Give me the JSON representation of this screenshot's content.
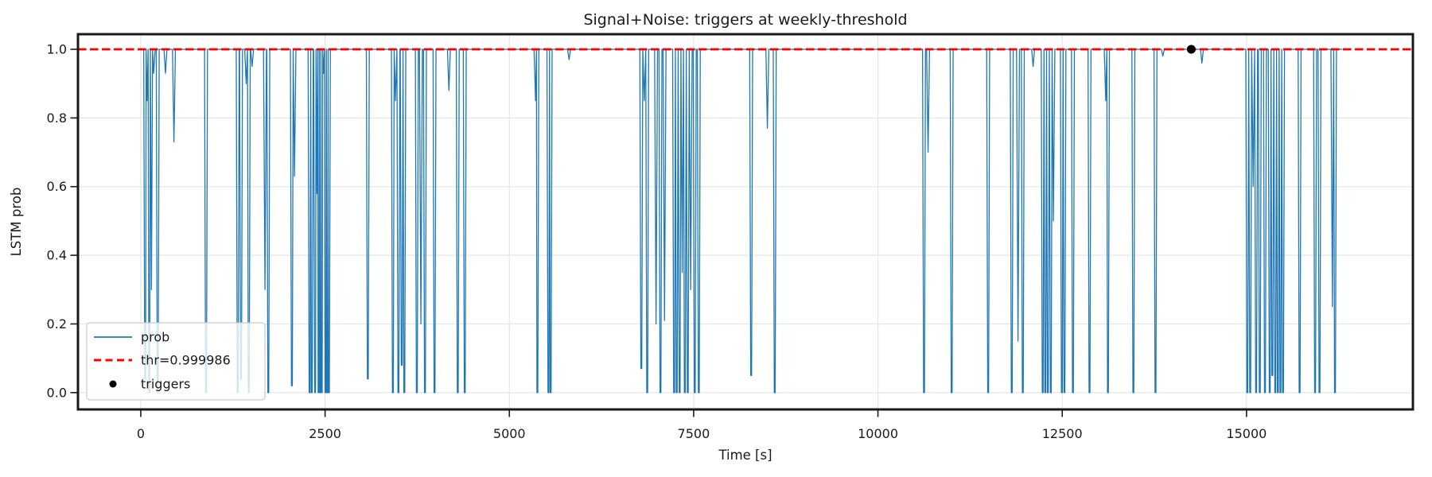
{
  "chart_data": {
    "type": "line",
    "title": "Signal+Noise: triggers at weekly-threshold",
    "xlabel": "Time [s]",
    "ylabel": "LSTM prob",
    "xlim": [
      -852,
      17257
    ],
    "ylim": [
      -0.049,
      1.044
    ],
    "x_ticks": [
      0,
      2500,
      5000,
      7500,
      10000,
      12500,
      15000
    ],
    "y_ticks": [
      0.0,
      0.2,
      0.4,
      0.6,
      0.8,
      1.0
    ],
    "grid": true,
    "threshold": 0.999986,
    "legend": {
      "position": "lower left",
      "entries": [
        {
          "label": "prob",
          "type": "line",
          "color": "#1f77b4"
        },
        {
          "label": "thr=0.999986",
          "type": "dashed",
          "color": "#ff0000"
        },
        {
          "label": "triggers",
          "type": "dot",
          "color": "#000000"
        }
      ]
    },
    "series": [
      {
        "name": "prob",
        "color": "#1f77b4",
        "baseline": 1.0,
        "t_start": 0,
        "t_end": 16300,
        "spikes": [
          [
            60,
            0.04
          ],
          [
            85,
            0.85
          ],
          [
            115,
            0.0
          ],
          [
            145,
            0.3
          ],
          [
            175,
            0.93
          ],
          [
            230,
            0.0
          ],
          [
            335,
            0.93
          ],
          [
            450,
            0.73
          ],
          [
            885,
            0.0
          ],
          [
            1315,
            0.0
          ],
          [
            1360,
            0.04
          ],
          [
            1430,
            0.9
          ],
          [
            1465,
            0.0
          ],
          [
            1510,
            0.95
          ],
          [
            1685,
            0.3
          ],
          [
            1730,
            0.0
          ],
          [
            2050,
            0.02
          ],
          [
            2085,
            0.63
          ],
          [
            2290,
            0.0
          ],
          [
            2320,
            0.0
          ],
          [
            2365,
            0.0
          ],
          [
            2390,
            0.58
          ],
          [
            2412,
            0.0
          ],
          [
            2432,
            0.0
          ],
          [
            2455,
            0.0
          ],
          [
            2480,
            0.93
          ],
          [
            2505,
            0.0
          ],
          [
            2530,
            0.0
          ],
          [
            2552,
            0.0
          ],
          [
            3080,
            0.04
          ],
          [
            3420,
            0.0
          ],
          [
            3455,
            0.85
          ],
          [
            3495,
            0.0
          ],
          [
            3540,
            0.08
          ],
          [
            3575,
            0.0
          ],
          [
            3745,
            0.0
          ],
          [
            3800,
            0.2
          ],
          [
            3855,
            0.0
          ],
          [
            3985,
            0.0
          ],
          [
            4180,
            0.88
          ],
          [
            4300,
            0.0
          ],
          [
            4395,
            0.0
          ],
          [
            5355,
            0.85
          ],
          [
            5380,
            0.0
          ],
          [
            5530,
            0.0
          ],
          [
            5560,
            0.0
          ],
          [
            5810,
            0.97
          ],
          [
            6790,
            0.07
          ],
          [
            6830,
            0.85
          ],
          [
            6870,
            0.0
          ],
          [
            6990,
            0.2
          ],
          [
            7050,
            0.0
          ],
          [
            7105,
            0.21
          ],
          [
            7235,
            0.0
          ],
          [
            7270,
            0.0
          ],
          [
            7310,
            0.0
          ],
          [
            7345,
            0.35
          ],
          [
            7380,
            0.0
          ],
          [
            7420,
            0.0
          ],
          [
            7460,
            0.3
          ],
          [
            7515,
            0.0
          ],
          [
            7570,
            0.0
          ],
          [
            8280,
            0.05
          ],
          [
            8500,
            0.77
          ],
          [
            8600,
            0.0
          ],
          [
            10625,
            0.0
          ],
          [
            10680,
            0.7
          ],
          [
            11000,
            0.0
          ],
          [
            11495,
            0.0
          ],
          [
            11815,
            0.0
          ],
          [
            11900,
            0.15
          ],
          [
            11965,
            0.0
          ],
          [
            12105,
            0.95
          ],
          [
            12235,
            0.0
          ],
          [
            12270,
            0.0
          ],
          [
            12305,
            0.0
          ],
          [
            12345,
            0.0
          ],
          [
            12380,
            0.5
          ],
          [
            12495,
            0.0
          ],
          [
            12530,
            0.0
          ],
          [
            12645,
            0.0
          ],
          [
            12870,
            0.0
          ],
          [
            13090,
            0.85
          ],
          [
            13120,
            0.0
          ],
          [
            13465,
            0.0
          ],
          [
            13765,
            0.0
          ],
          [
            13865,
            0.98
          ],
          [
            14395,
            0.96
          ],
          [
            15010,
            0.0
          ],
          [
            15050,
            0.0
          ],
          [
            15090,
            0.6
          ],
          [
            15130,
            0.0
          ],
          [
            15180,
            0.0
          ],
          [
            15250,
            0.0
          ],
          [
            15315,
            0.0
          ],
          [
            15350,
            0.05
          ],
          [
            15390,
            0.0
          ],
          [
            15425,
            0.0
          ],
          [
            15460,
            0.0
          ],
          [
            15495,
            0.0
          ],
          [
            15720,
            0.0
          ],
          [
            15930,
            0.0
          ],
          [
            15990,
            0.0
          ],
          [
            16165,
            0.25
          ],
          [
            16200,
            0.0
          ]
        ]
      }
    ],
    "triggers": [
      [
        14250,
        1.0
      ]
    ]
  },
  "colors": {
    "series_blue": "#1f77b4",
    "threshold_red": "#ff0000",
    "trigger_black": "#000000",
    "grid": "#e6e6e6",
    "spine": "#1a1a1a",
    "text": "#1a1a1a",
    "legend_border": "#cccccc",
    "legend_bg": "rgba(255,255,255,0.8)"
  }
}
